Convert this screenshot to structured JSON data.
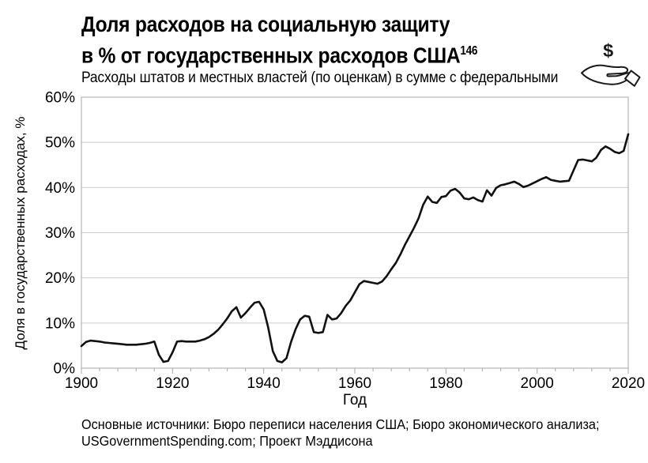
{
  "header": {
    "title_line1": "Доля расходов на социальную защиту",
    "title_line2": "в % от государственных расходов США",
    "title_footnote": "146",
    "subtitle": "Расходы штатов и местных властей (по оценкам) в сумме с федеральными"
  },
  "icon": {
    "name": "hand-receiving-dollar-icon",
    "dollar_symbol": "$"
  },
  "chart_data": {
    "type": "line",
    "title": "Доля расходов на социальную защиту в % от государственных расходов США",
    "xlabel": "Год",
    "ylabel": "Доля в государственных расходах, %",
    "xlim": [
      1900,
      2020
    ],
    "ylim": [
      0,
      60
    ],
    "grid": "horizontal",
    "legend": "none",
    "ytick_values": [
      0,
      10,
      20,
      30,
      40,
      50,
      60
    ],
    "ytick_labels": [
      "0%",
      "10%",
      "20%",
      "30%",
      "40%",
      "50%",
      "60%"
    ],
    "xtick_values": [
      1900,
      1920,
      1940,
      1960,
      1980,
      2000,
      2020
    ],
    "xtick_labels": [
      "1900",
      "1920",
      "1940",
      "1960",
      "1980",
      "2000",
      "2020"
    ],
    "xtick_minor_step": 4,
    "series": [
      {
        "name": "Доля расходов на социальную защиту, % гос. расходов",
        "color": "#111111",
        "x": [
          1900,
          1901,
          1902,
          1903,
          1904,
          1905,
          1906,
          1907,
          1908,
          1909,
          1910,
          1911,
          1912,
          1913,
          1914,
          1915,
          1916,
          1917,
          1918,
          1919,
          1920,
          1921,
          1922,
          1923,
          1924,
          1925,
          1926,
          1927,
          1928,
          1929,
          1930,
          1931,
          1932,
          1933,
          1934,
          1935,
          1936,
          1937,
          1938,
          1939,
          1940,
          1941,
          1942,
          1943,
          1944,
          1945,
          1946,
          1947,
          1948,
          1949,
          1950,
          1951,
          1952,
          1953,
          1954,
          1955,
          1956,
          1957,
          1958,
          1959,
          1960,
          1961,
          1962,
          1963,
          1964,
          1965,
          1966,
          1967,
          1968,
          1969,
          1970,
          1971,
          1972,
          1973,
          1974,
          1975,
          1976,
          1977,
          1978,
          1979,
          1980,
          1981,
          1982,
          1983,
          1984,
          1985,
          1986,
          1987,
          1988,
          1989,
          1990,
          1991,
          1992,
          1993,
          1994,
          1995,
          1996,
          1997,
          1998,
          1999,
          2000,
          2001,
          2002,
          2003,
          2004,
          2005,
          2006,
          2007,
          2008,
          2009,
          2010,
          2011,
          2012,
          2013,
          2014,
          2015,
          2016,
          2017,
          2018,
          2019,
          2020
        ],
        "y": [
          4.9,
          5.8,
          6.1,
          6.0,
          5.9,
          5.7,
          5.6,
          5.5,
          5.4,
          5.3,
          5.2,
          5.2,
          5.2,
          5.3,
          5.4,
          5.6,
          5.9,
          3.0,
          1.4,
          1.6,
          3.5,
          5.9,
          6.0,
          5.9,
          5.9,
          5.9,
          6.1,
          6.4,
          6.9,
          7.6,
          8.5,
          9.7,
          11.0,
          12.6,
          13.5,
          11.2,
          12.2,
          13.4,
          14.5,
          14.7,
          13.0,
          9.0,
          3.8,
          1.6,
          1.3,
          2.2,
          5.8,
          8.6,
          10.8,
          11.6,
          11.4,
          8.0,
          7.8,
          8.0,
          11.8,
          10.8,
          11.0,
          12.2,
          13.8,
          15.0,
          16.8,
          18.6,
          19.3,
          19.1,
          18.9,
          18.7,
          19.2,
          20.4,
          21.9,
          23.3,
          25.2,
          27.3,
          29.2,
          31.1,
          33.2,
          36.2,
          38.0,
          36.8,
          36.6,
          37.9,
          38.1,
          39.3,
          39.7,
          38.9,
          37.6,
          37.4,
          37.8,
          37.2,
          36.9,
          39.4,
          38.2,
          39.9,
          40.5,
          40.7,
          41.0,
          41.3,
          40.8,
          40.1,
          40.4,
          40.9,
          41.4,
          41.9,
          42.3,
          41.7,
          41.5,
          41.3,
          41.4,
          41.5,
          43.8,
          46.1,
          46.2,
          46.0,
          45.8,
          46.6,
          48.3,
          49.1,
          48.6,
          47.9,
          47.6,
          48.1,
          51.8
        ]
      }
    ]
  },
  "source": {
    "line1": "Основные источники: Бюро переписи населения США; Бюро экономического анализа;",
    "line2": "USGovernmentSpending.com; Проект Мэддисона"
  },
  "colors": {
    "line": "#111111",
    "gridline": "#cccccc",
    "axis_border": "#b3b3b3",
    "text": "#000000"
  }
}
